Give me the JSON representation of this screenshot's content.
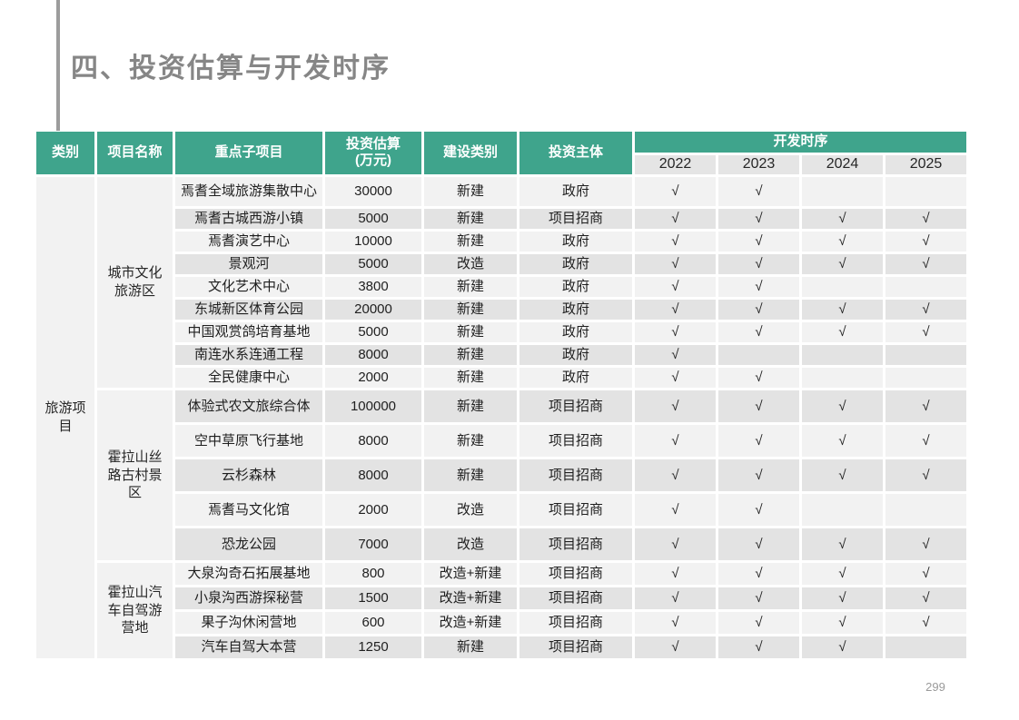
{
  "page": {
    "title": "四、投资估算与开发时序",
    "page_number": "299"
  },
  "colors": {
    "header_teal": "#3fa48c",
    "row_light": "#f2f2f2",
    "row_dark": "#e3e3e3",
    "year_header_bg": "#e5e5e5",
    "title_gray": "#868686",
    "accent_bar_gray": "#9c9c9c"
  },
  "table": {
    "headers": {
      "category": "类别",
      "project": "项目名称",
      "subproject": "重点子项目",
      "investment_l1": "投资估算",
      "investment_l2": "(万元)",
      "type": "建设类别",
      "investor": "投资主体",
      "timeline": "开发时序"
    },
    "years": [
      "2022",
      "2023",
      "2024",
      "2025"
    ],
    "category": "旅游项目",
    "groups": [
      {
        "name": "城市文化旅游区",
        "rows": [
          {
            "subproject": "焉耆全域旅游集散中心",
            "investment": "30000",
            "type": "新建",
            "investor": "政府",
            "checks": [
              "√",
              "√",
              "",
              ""
            ]
          },
          {
            "subproject": "焉耆古城西游小镇",
            "investment": "5000",
            "type": "新建",
            "investor": "项目招商",
            "checks": [
              "√",
              "√",
              "√",
              "√"
            ]
          },
          {
            "subproject": "焉耆演艺中心",
            "investment": "10000",
            "type": "新建",
            "investor": "政府",
            "checks": [
              "√",
              "√",
              "√",
              "√"
            ]
          },
          {
            "subproject": "景观河",
            "investment": "5000",
            "type": "改造",
            "investor": "政府",
            "checks": [
              "√",
              "√",
              "√",
              "√"
            ]
          },
          {
            "subproject": "文化艺术中心",
            "investment": "3800",
            "type": "新建",
            "investor": "政府",
            "checks": [
              "√",
              "√",
              "",
              ""
            ]
          },
          {
            "subproject": "东城新区体育公园",
            "investment": "20000",
            "type": "新建",
            "investor": "政府",
            "checks": [
              "√",
              "√",
              "√",
              "√"
            ]
          },
          {
            "subproject": "中国观赏鸽培育基地",
            "investment": "5000",
            "type": "新建",
            "investor": "政府",
            "checks": [
              "√",
              "√",
              "√",
              "√"
            ]
          },
          {
            "subproject": "南连水系连通工程",
            "investment": "8000",
            "type": "新建",
            "investor": "政府",
            "checks": [
              "√",
              "",
              "",
              ""
            ]
          },
          {
            "subproject": "全民健康中心",
            "investment": "2000",
            "type": "新建",
            "investor": "政府",
            "checks": [
              "√",
              "√",
              "",
              ""
            ]
          }
        ]
      },
      {
        "name": "霍拉山丝路古村景区",
        "rows": [
          {
            "subproject": "体验式农文旅综合体",
            "investment": "100000",
            "type": "新建",
            "investor": "项目招商",
            "checks": [
              "√",
              "√",
              "√",
              "√"
            ]
          },
          {
            "subproject": "空中草原飞行基地",
            "investment": "8000",
            "type": "新建",
            "investor": "项目招商",
            "checks": [
              "√",
              "√",
              "√",
              "√"
            ]
          },
          {
            "subproject": "云杉森林",
            "investment": "8000",
            "type": "新建",
            "investor": "项目招商",
            "checks": [
              "√",
              "√",
              "√",
              "√"
            ]
          },
          {
            "subproject": "焉耆马文化馆",
            "investment": "2000",
            "type": "改造",
            "investor": "项目招商",
            "checks": [
              "√",
              "√",
              "",
              ""
            ]
          },
          {
            "subproject": "恐龙公园",
            "investment": "7000",
            "type": "改造",
            "investor": "项目招商",
            "checks": [
              "√",
              "√",
              "√",
              "√"
            ]
          }
        ]
      },
      {
        "name": "霍拉山汽车自驾游营地",
        "rows": [
          {
            "subproject": "大泉沟奇石拓展基地",
            "investment": "800",
            "type": "改造+新建",
            "investor": "项目招商",
            "checks": [
              "√",
              "√",
              "√",
              "√"
            ]
          },
          {
            "subproject": "小泉沟西游探秘营",
            "investment": "1500",
            "type": "改造+新建",
            "investor": "项目招商",
            "checks": [
              "√",
              "√",
              "√",
              "√"
            ]
          },
          {
            "subproject": "果子沟休闲营地",
            "investment": "600",
            "type": "改造+新建",
            "investor": "项目招商",
            "checks": [
              "√",
              "√",
              "√",
              "√"
            ]
          },
          {
            "subproject": "汽车自驾大本营",
            "investment": "1250",
            "type": "新建",
            "investor": "项目招商",
            "checks": [
              "√",
              "√",
              "√",
              ""
            ]
          }
        ]
      }
    ]
  }
}
